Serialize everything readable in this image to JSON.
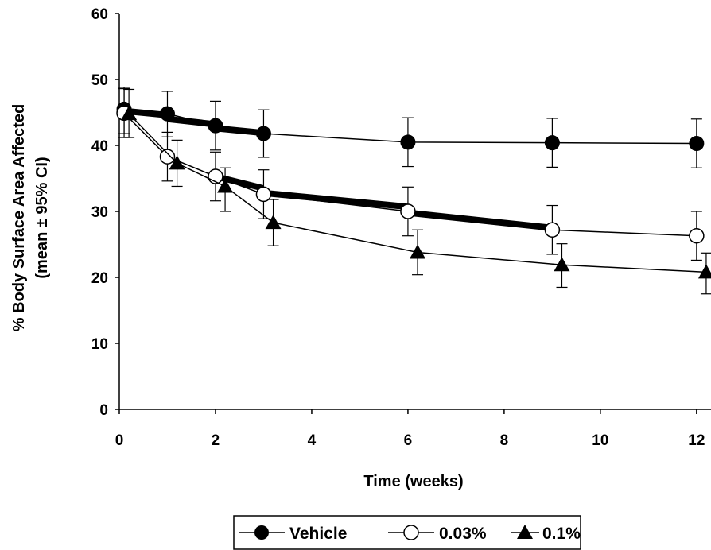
{
  "chart_data": {
    "type": "line",
    "xlabel": "Time (weeks)",
    "ylabel": "% Body Surface Area Affected",
    "ylabel2": "(mean ± 95% CI)",
    "xlim": [
      0,
      12.3
    ],
    "ylim": [
      0,
      60
    ],
    "x_ticks": [
      0,
      2,
      4,
      6,
      8,
      10,
      12
    ],
    "y_ticks": [
      0,
      10,
      20,
      30,
      40,
      50,
      60
    ],
    "grid": false,
    "legend_position": "bottom-center",
    "series": [
      {
        "name": "Vehicle",
        "marker": "filled-circle",
        "color": "#000000",
        "x": [
          0.1,
          1,
          2,
          3,
          6,
          9,
          12
        ],
        "y": [
          45.5,
          44.8,
          43.0,
          41.8,
          40.5,
          40.4,
          40.3
        ],
        "err_low": [
          41.8,
          41.3,
          39.3,
          38.2,
          36.8,
          36.7,
          36.6
        ],
        "err_high": [
          48.8,
          48.2,
          46.7,
          45.4,
          44.2,
          44.1,
          44.0
        ]
      },
      {
        "name": "0.03%",
        "marker": "open-circle",
        "color": "#000000",
        "x": [
          0.1,
          1,
          2,
          3,
          6,
          9,
          12
        ],
        "y": [
          44.9,
          38.3,
          35.3,
          32.6,
          30.0,
          27.2,
          26.3
        ],
        "err_low": [
          41.2,
          34.6,
          31.6,
          28.9,
          26.3,
          23.5,
          22.6
        ],
        "err_high": [
          48.6,
          42.0,
          39.0,
          36.3,
          33.7,
          30.9,
          30.0
        ]
      },
      {
        "name": "0.1%",
        "marker": "filled-triangle",
        "color": "#000000",
        "x": [
          0.2,
          1.2,
          2.2,
          3.2,
          6.2,
          9.2,
          12.2
        ],
        "y": [
          44.8,
          37.3,
          33.8,
          28.3,
          23.8,
          21.9,
          20.8
        ],
        "err_low": [
          41.2,
          33.8,
          30.0,
          24.8,
          20.4,
          18.5,
          17.5
        ],
        "err_high": [
          48.5,
          40.8,
          36.6,
          31.8,
          27.2,
          25.1,
          23.7
        ]
      }
    ],
    "significance_bars": [
      {
        "x1": 0,
        "x2": 1,
        "y1": 45.3,
        "y2": 44.6
      },
      {
        "x1": 1,
        "x2": 2,
        "y1": 44.0,
        "y2": 43.2
      },
      {
        "x1": 2,
        "x2": 3,
        "y1": 42.6,
        "y2": 41.9
      },
      {
        "x1": 2,
        "x2": 3,
        "y1": 35.3,
        "y2": 33.5
      },
      {
        "x1": 3,
        "x2": 6,
        "y1": 32.8,
        "y2": 30.7
      },
      {
        "x1": 6,
        "x2": 9,
        "y1": 29.8,
        "y2": 27.5
      }
    ]
  }
}
